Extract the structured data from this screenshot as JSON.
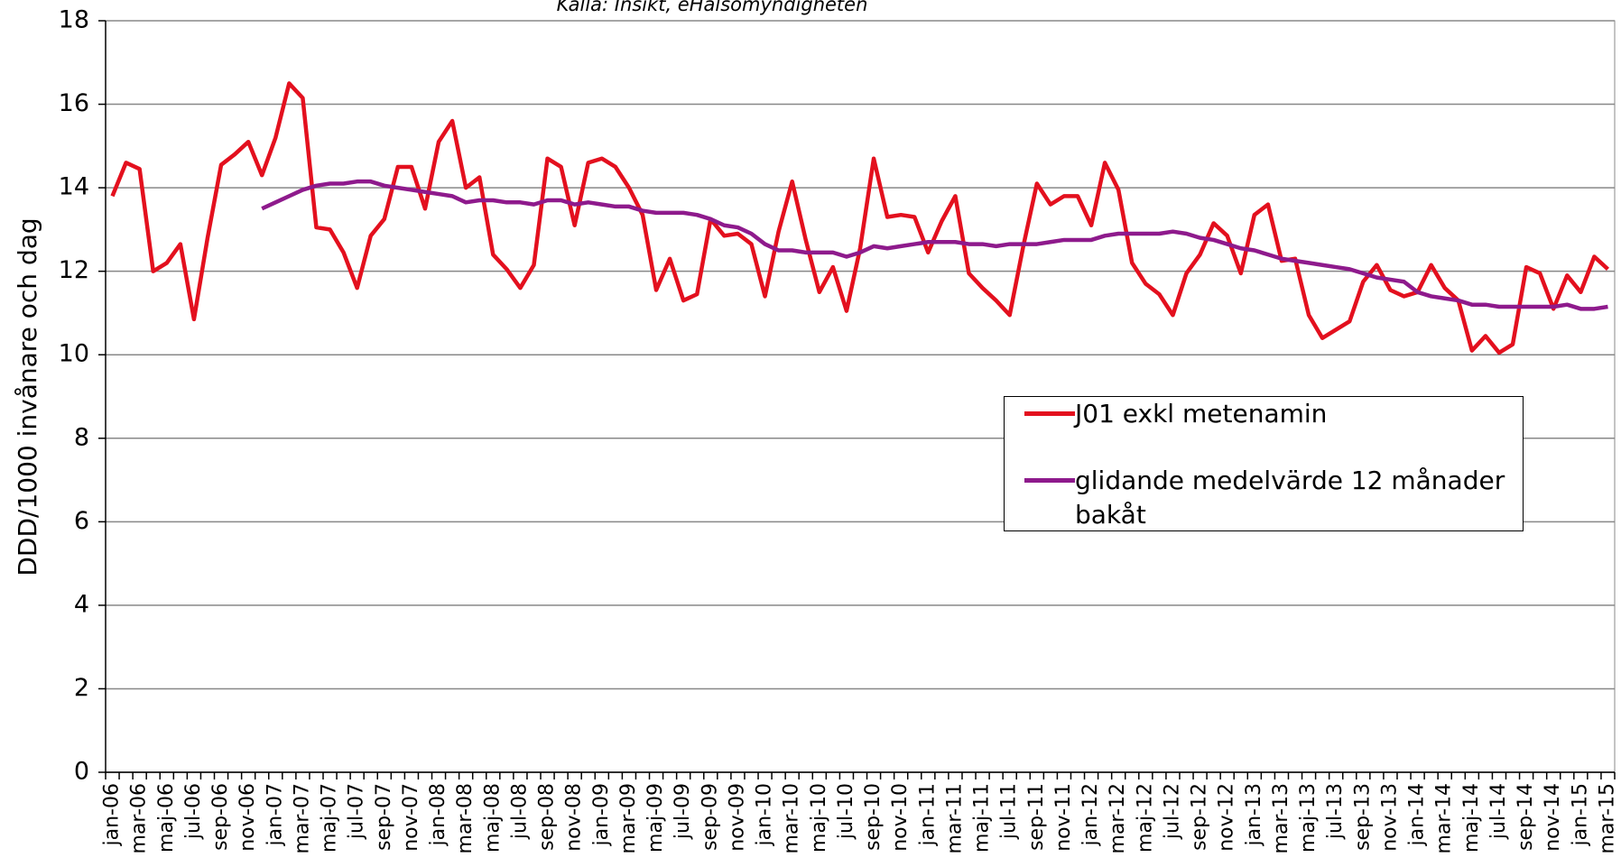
{
  "chart_data": {
    "type": "line",
    "subtitle": "Källa: Insikt, eHälsomyndigheten",
    "y_label": "DDD/1000 invånare och dag",
    "categories": [
      "jan-06",
      null,
      "mar-06",
      null,
      "maj-06",
      null,
      "jul-06",
      null,
      "sep-06",
      null,
      "nov-06",
      null,
      "jan-07",
      null,
      "mar-07",
      null,
      "maj-07",
      null,
      "jul-07",
      null,
      "sep-07",
      null,
      "nov-07",
      null,
      "jan-08",
      null,
      "mar-08",
      null,
      "maj-08",
      null,
      "jul-08",
      null,
      "sep-08",
      null,
      "nov-08",
      null,
      "jan-09",
      null,
      "mar-09",
      null,
      "maj-09",
      null,
      "jul-09",
      null,
      "sep-09",
      null,
      "nov-09",
      null,
      "jan-10",
      null,
      "mar-10",
      null,
      "maj-10",
      null,
      "jul-10",
      null,
      "sep-10",
      null,
      "nov-10",
      null,
      "jan-11",
      null,
      "mar-11",
      null,
      "maj-11",
      null,
      "jul-11",
      null,
      "sep-11",
      null,
      "nov-11",
      null,
      "jan-12",
      null,
      "mar-12",
      null,
      "maj-12",
      null,
      "jul-12",
      null,
      "sep-12",
      null,
      "nov-12",
      null,
      "jan-13",
      null,
      "mar-13",
      null,
      "maj-13",
      null,
      "jul-13",
      null,
      "sep-13",
      null,
      "nov-13",
      null,
      "jan-14",
      null,
      "mar-14",
      null,
      "maj-14",
      null,
      "jul-14",
      null,
      "sep-14",
      null,
      "nov-14",
      null,
      "jan-15",
      null,
      "mar-15"
    ],
    "series": [
      {
        "name": "J01 exkl metenamin",
        "color": "#e3101e",
        "values": [
          13.8,
          14.6,
          14.45,
          12.0,
          12.2,
          12.65,
          10.85,
          12.8,
          14.55,
          14.8,
          15.1,
          14.3,
          15.2,
          16.5,
          16.15,
          13.05,
          13.0,
          12.45,
          11.6,
          12.85,
          13.25,
          14.5,
          14.5,
          13.5,
          15.1,
          15.6,
          14.0,
          14.25,
          12.4,
          12.05,
          11.6,
          12.15,
          14.7,
          14.5,
          13.1,
          14.6,
          14.7,
          14.5,
          14.0,
          13.35,
          11.55,
          12.3,
          11.3,
          11.45,
          13.25,
          12.85,
          12.9,
          12.65,
          11.4,
          12.95,
          14.15,
          12.75,
          11.5,
          12.1,
          11.05,
          12.55,
          14.7,
          13.3,
          13.35,
          13.3,
          12.45,
          13.2,
          13.8,
          11.95,
          11.6,
          11.3,
          10.95,
          12.6,
          14.1,
          13.6,
          13.8,
          13.8,
          13.1,
          14.6,
          13.95,
          12.2,
          11.7,
          11.45,
          10.95,
          11.95,
          12.4,
          13.15,
          12.85,
          11.95,
          13.35,
          13.6,
          12.25,
          12.3,
          10.95,
          10.4,
          10.6,
          10.8,
          11.75,
          12.15,
          11.55,
          11.4,
          11.5,
          12.15,
          11.6,
          11.3,
          10.1,
          10.45,
          10.05,
          10.25,
          12.1,
          11.95,
          11.1,
          11.9,
          11.5,
          12.35,
          12.05
        ]
      },
      {
        "name": "glidande medelvärde 12 månader bakåt",
        "color": "#8e1a8c",
        "values": [
          null,
          null,
          null,
          null,
          null,
          null,
          null,
          null,
          null,
          null,
          null,
          13.5,
          13.65,
          13.8,
          13.95,
          14.05,
          14.1,
          14.1,
          14.15,
          14.15,
          14.05,
          14.0,
          13.95,
          13.9,
          13.85,
          13.8,
          13.65,
          13.7,
          13.7,
          13.65,
          13.65,
          13.6,
          13.7,
          13.7,
          13.6,
          13.65,
          13.6,
          13.55,
          13.55,
          13.45,
          13.4,
          13.4,
          13.4,
          13.35,
          13.25,
          13.1,
          13.05,
          12.9,
          12.65,
          12.5,
          12.5,
          12.45,
          12.45,
          12.45,
          12.35,
          12.45,
          12.6,
          12.55,
          12.6,
          12.65,
          12.7,
          12.7,
          12.7,
          12.65,
          12.65,
          12.6,
          12.65,
          12.65,
          12.65,
          12.7,
          12.75,
          12.75,
          12.75,
          12.85,
          12.9,
          12.9,
          12.9,
          12.9,
          12.95,
          12.9,
          12.8,
          12.75,
          12.65,
          12.55,
          12.5,
          12.4,
          12.3,
          12.25,
          12.2,
          12.15,
          12.1,
          12.05,
          11.95,
          11.85,
          11.8,
          11.75,
          11.5,
          11.4,
          11.35,
          11.3,
          11.2,
          11.2,
          11.15,
          11.15,
          11.15,
          11.15,
          11.15,
          11.2,
          11.1,
          11.1,
          11.15
        ]
      }
    ],
    "ylim": [
      0,
      18
    ],
    "yticks": [
      0,
      2,
      4,
      6,
      8,
      10,
      12,
      14,
      16,
      18
    ],
    "grid": true
  }
}
